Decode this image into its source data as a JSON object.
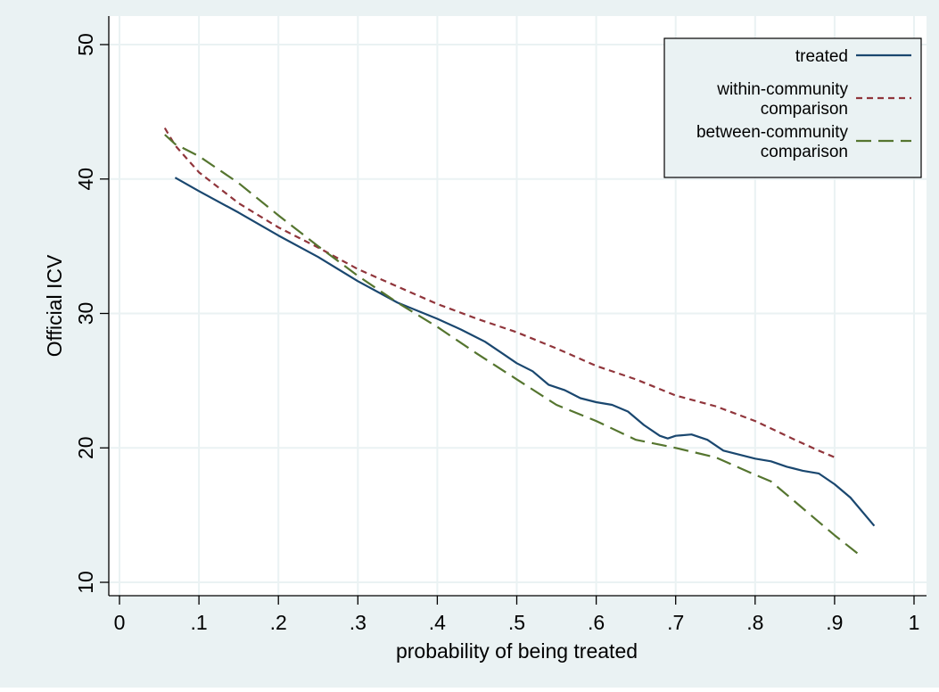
{
  "chart_data": {
    "type": "line",
    "title": "",
    "xlabel": "probability of being treated",
    "ylabel": "Official ICV",
    "xlim": [
      -0.01,
      1.02
    ],
    "ylim": [
      8.5,
      52
    ],
    "xticks": [
      0,
      0.1,
      0.2,
      0.3,
      0.4,
      0.5,
      0.6,
      0.7,
      0.8,
      0.9,
      1
    ],
    "xtick_labels": [
      "0",
      ".1",
      ".2",
      ".3",
      ".4",
      ".5",
      ".6",
      ".7",
      ".8",
      ".9",
      "1"
    ],
    "yticks": [
      10,
      20,
      30,
      40,
      50
    ],
    "ytick_labels": [
      "10",
      "20",
      "30",
      "40",
      "50"
    ],
    "grid": "horizontal and vertical",
    "legend_position": "top-right",
    "colors": {
      "outer_background": "#eaf2f3",
      "plot_background": "#ffffff",
      "gridline": "#eaf2f3"
    },
    "series": [
      {
        "name": "treated",
        "legend_lines": [
          "treated"
        ],
        "color": "#1a476f",
        "style": "solid",
        "x": [
          0.07,
          0.1,
          0.15,
          0.2,
          0.25,
          0.3,
          0.35,
          0.4,
          0.43,
          0.46,
          0.48,
          0.5,
          0.52,
          0.54,
          0.56,
          0.58,
          0.6,
          0.62,
          0.64,
          0.66,
          0.68,
          0.69,
          0.7,
          0.72,
          0.74,
          0.76,
          0.78,
          0.8,
          0.82,
          0.84,
          0.86,
          0.88,
          0.9,
          0.92,
          0.95
        ],
        "y": [
          40.1,
          39.1,
          37.5,
          35.8,
          34.2,
          32.4,
          30.8,
          29.6,
          28.8,
          27.9,
          27.1,
          26.3,
          25.7,
          24.7,
          24.3,
          23.7,
          23.4,
          23.2,
          22.7,
          21.7,
          20.9,
          20.7,
          20.9,
          21.0,
          20.6,
          19.8,
          19.5,
          19.2,
          19.0,
          18.6,
          18.3,
          18.1,
          17.3,
          16.3,
          14.2
        ]
      },
      {
        "name": "within-community comparison",
        "legend_lines": [
          "within-community",
          "comparison"
        ],
        "color": "#90353b",
        "style": "short-dash",
        "x": [
          0.057,
          0.07,
          0.1,
          0.15,
          0.2,
          0.25,
          0.3,
          0.35,
          0.4,
          0.45,
          0.5,
          0.55,
          0.6,
          0.65,
          0.7,
          0.75,
          0.8,
          0.85,
          0.88,
          0.9
        ],
        "y": [
          43.8,
          42.5,
          40.5,
          38.2,
          36.4,
          34.9,
          33.3,
          32.0,
          30.7,
          29.6,
          28.6,
          27.4,
          26.1,
          25.1,
          23.9,
          23.1,
          22.0,
          20.6,
          19.8,
          19.3
        ]
      },
      {
        "name": "between-community comparison",
        "legend_lines": [
          "between-community",
          "comparison"
        ],
        "color": "#55752f",
        "style": "long-dash",
        "x": [
          0.057,
          0.07,
          0.1,
          0.15,
          0.2,
          0.25,
          0.3,
          0.35,
          0.4,
          0.45,
          0.5,
          0.55,
          0.6,
          0.65,
          0.7,
          0.75,
          0.8,
          0.82,
          0.85,
          0.88,
          0.9,
          0.93
        ],
        "y": [
          43.3,
          42.6,
          41.7,
          39.7,
          37.3,
          35.0,
          32.8,
          30.8,
          29.0,
          27.0,
          25.1,
          23.2,
          22.0,
          20.6,
          20.0,
          19.3,
          18.0,
          17.5,
          16.0,
          14.5,
          13.5,
          12.1
        ]
      }
    ]
  }
}
